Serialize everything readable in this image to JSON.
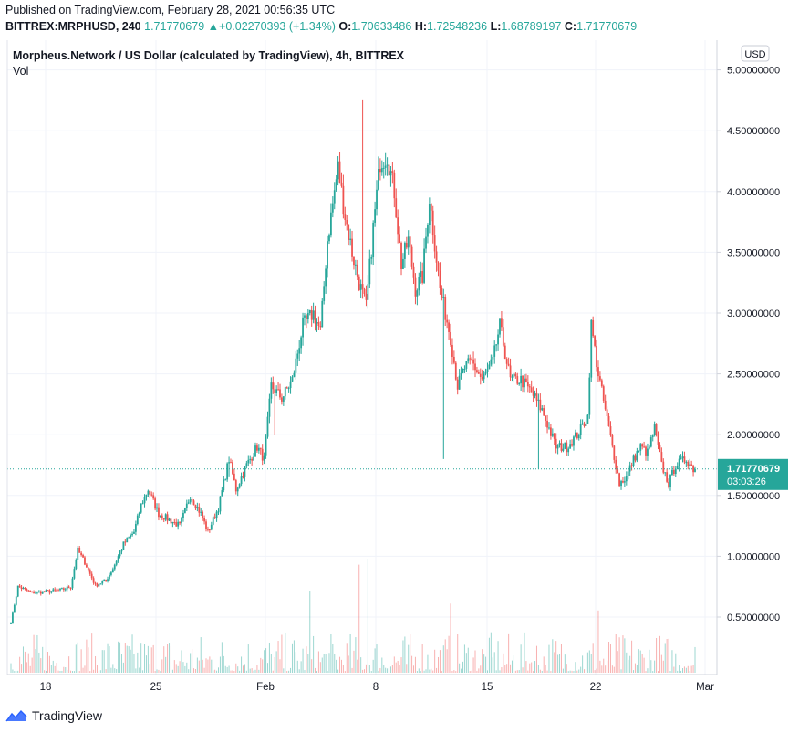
{
  "header": {
    "published": "Published on TradingView.com, February 28, 2021 00:56:35 UTC",
    "symbol": "BITTREX:MRPHUSD, 240",
    "last": "1.71770679",
    "change": "+0.02270393 (+1.34%)",
    "o_label": "O:",
    "o": "1.70633486",
    "h_label": "H:",
    "h": "1.72548236",
    "l_label": "L:",
    "l": "1.68789197",
    "c_label": "C:",
    "c": "1.71770679"
  },
  "legend": {
    "title": "Morpheus.Network / US Dollar (calculated by TradingView), 4h, BITTREX",
    "vol": "Vol"
  },
  "price_axis": {
    "currency": "USD",
    "ticks": [
      "5.00000000",
      "4.50000000",
      "4.00000000",
      "3.50000000",
      "3.00000000",
      "2.50000000",
      "2.00000000",
      "1.50000000",
      "1.00000000",
      "0.50000000"
    ],
    "last_price": "1.71770679",
    "countdown": "03:03:26"
  },
  "time_axis": {
    "ticks": [
      "18",
      "25",
      "Feb",
      "8",
      "15",
      "22",
      "Mar"
    ]
  },
  "footer": {
    "brand": "TradingView"
  },
  "colors": {
    "up": "#26a69a",
    "down": "#ef5350",
    "grid": "#f0f3fa",
    "axis_text": "#131722"
  },
  "chart_data": {
    "type": "candlestick",
    "interval": "4h",
    "ylim": [
      0,
      5.2
    ],
    "last_price": 1.71770679,
    "anchors": [
      [
        0,
        0.46
      ],
      [
        4,
        0.75
      ],
      [
        12,
        0.7
      ],
      [
        28,
        0.72
      ],
      [
        34,
        0.75
      ],
      [
        38,
        1.05
      ],
      [
        42,
        0.95
      ],
      [
        48,
        0.76
      ],
      [
        54,
        0.8
      ],
      [
        58,
        0.9
      ],
      [
        64,
        1.1
      ],
      [
        70,
        1.2
      ],
      [
        74,
        1.42
      ],
      [
        78,
        1.55
      ],
      [
        84,
        1.35
      ],
      [
        90,
        1.3
      ],
      [
        96,
        1.25
      ],
      [
        102,
        1.5
      ],
      [
        108,
        1.35
      ],
      [
        112,
        1.2
      ],
      [
        118,
        1.4
      ],
      [
        124,
        1.8
      ],
      [
        128,
        1.55
      ],
      [
        134,
        1.75
      ],
      [
        140,
        1.9
      ],
      [
        144,
        1.8
      ],
      [
        148,
        2.4
      ],
      [
        154,
        2.3
      ],
      [
        160,
        2.45
      ],
      [
        166,
        2.9
      ],
      [
        172,
        3.0
      ],
      [
        176,
        2.85
      ],
      [
        180,
        3.6
      ],
      [
        186,
        4.2
      ],
      [
        190,
        3.8
      ],
      [
        194,
        3.5
      ],
      [
        198,
        3.25
      ],
      [
        202,
        3.05
      ],
      [
        206,
        3.7
      ],
      [
        210,
        4.25
      ],
      [
        214,
        4.3
      ],
      [
        218,
        4.0
      ],
      [
        222,
        3.4
      ],
      [
        226,
        3.6
      ],
      [
        230,
        3.2
      ],
      [
        234,
        3.3
      ],
      [
        238,
        3.95
      ],
      [
        244,
        3.2
      ],
      [
        250,
        2.8
      ],
      [
        254,
        2.4
      ],
      [
        258,
        2.55
      ],
      [
        262,
        2.6
      ],
      [
        268,
        2.45
      ],
      [
        274,
        2.6
      ],
      [
        278,
        2.9
      ],
      [
        284,
        2.45
      ],
      [
        290,
        2.45
      ],
      [
        296,
        2.35
      ],
      [
        302,
        2.2
      ],
      [
        306,
        2.05
      ],
      [
        310,
        1.9
      ],
      [
        316,
        1.9
      ],
      [
        322,
        2.0
      ],
      [
        328,
        2.15
      ],
      [
        330,
        2.9
      ],
      [
        334,
        2.5
      ],
      [
        338,
        2.2
      ],
      [
        342,
        1.9
      ],
      [
        346,
        1.6
      ],
      [
        350,
        1.65
      ],
      [
        354,
        1.8
      ],
      [
        358,
        1.9
      ],
      [
        362,
        1.85
      ],
      [
        366,
        2.05
      ],
      [
        370,
        1.75
      ],
      [
        374,
        1.6
      ],
      [
        378,
        1.75
      ],
      [
        384,
        1.8
      ],
      [
        388,
        1.72
      ]
    ],
    "wick_spikes": [
      {
        "i": 200,
        "high": 4.75
      },
      {
        "i": 246,
        "low": 1.8
      },
      {
        "i": 124,
        "low": 1.65
      },
      {
        "i": 150,
        "low": 2.0
      },
      {
        "i": 300,
        "low": 1.72
      }
    ],
    "volume_max": 1.32,
    "volume_peaks": [
      {
        "i": 203,
        "v": 1.32
      },
      {
        "i": 198,
        "v": 1.25
      },
      {
        "i": 170,
        "v": 0.95
      },
      {
        "i": 334,
        "v": 0.72
      },
      {
        "i": 250,
        "v": 0.8
      }
    ]
  }
}
